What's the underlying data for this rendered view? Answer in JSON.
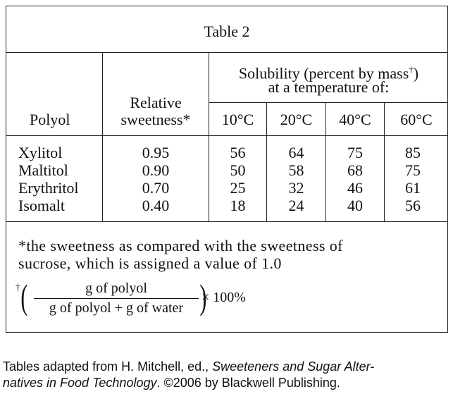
{
  "table_title": "Table 2",
  "headers": {
    "polyol": "Polyol",
    "relative_line1": "Relative",
    "relative_line2": "sweetness*",
    "solubility_line1_pre": "Solubility (percent by mass",
    "solubility_dagger": "†",
    "solubility_line1_post": ")",
    "solubility_line2": "at a temperature of:",
    "temps": [
      "10°C",
      "20°C",
      "40°C",
      "60°C"
    ]
  },
  "rows": {
    "polyols": [
      "Xylitol",
      "Maltitol",
      "Erythritol",
      "Isomalt"
    ],
    "sweetness": [
      "0.95",
      "0.90",
      "0.70",
      "0.40"
    ],
    "t10": [
      "56",
      "50",
      "25",
      "18"
    ],
    "t20": [
      "64",
      "58",
      "32",
      "24"
    ],
    "t40": [
      "75",
      "68",
      "46",
      "40"
    ],
    "t60": [
      "85",
      "75",
      "61",
      "56"
    ]
  },
  "footnotes": {
    "star_line1": "*the sweetness as compared with the sweetness of",
    "star_line2": "sucrose, which is assigned a value of 1.0",
    "dagger_symbol": "†",
    "numerator": "g of polyol",
    "denominator": "g of polyol + g of water",
    "multiplier": "× 100%"
  },
  "caption": {
    "pre": "Tables adapted from H. Mitchell, ed., ",
    "title_part1": "Sweeteners and Sugar Alter-",
    "title_part2": "natives in Food Technology",
    "post": ". ©2006 by Blackwell Publishing."
  }
}
